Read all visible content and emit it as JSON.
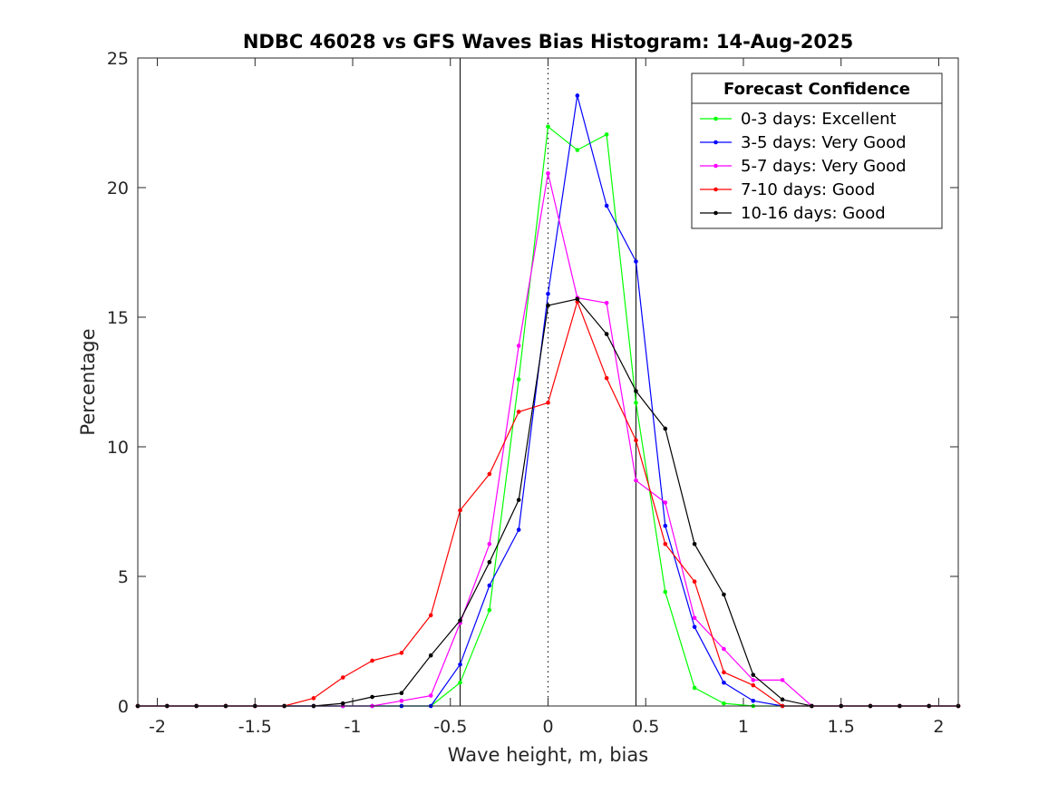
{
  "chart_data": {
    "type": "line",
    "title": "NDBC 46028 vs GFS Waves Bias Histogram: 14-Aug-2025",
    "xlabel": "Wave height, m, bias",
    "ylabel": "Percentage",
    "xlim": [
      -2.1,
      2.1
    ],
    "ylim": [
      0,
      25
    ],
    "xticks": [
      -2,
      -1.5,
      -1,
      -0.5,
      0,
      0.5,
      1,
      1.5,
      2
    ],
    "xtick_labels": [
      "-2",
      "-1.5",
      "-1",
      "-0.5",
      "0",
      "0.5",
      "1",
      "1.5",
      "2"
    ],
    "yticks": [
      0,
      5,
      10,
      15,
      20,
      25
    ],
    "ytick_labels": [
      "0",
      "5",
      "10",
      "15",
      "20",
      "25"
    ],
    "grid": false,
    "vertical_lines": [
      {
        "x": -0.45,
        "style": "solid",
        "color": "#000000"
      },
      {
        "x": 0,
        "style": "dotted",
        "color": "#000000"
      },
      {
        "x": 0.45,
        "style": "solid",
        "color": "#000000"
      }
    ],
    "legend": {
      "title": "Forecast Confidence",
      "placement": "top-right"
    },
    "x": [
      -2.1,
      -1.95,
      -1.8,
      -1.65,
      -1.5,
      -1.35,
      -1.2,
      -1.05,
      -0.9,
      -0.75,
      -0.6,
      -0.45,
      -0.3,
      -0.15,
      0,
      0.15,
      0.3,
      0.45,
      0.6,
      0.75,
      0.9,
      1.05,
      1.2,
      1.35,
      1.5,
      1.65,
      1.8,
      1.95,
      2.1
    ],
    "series": [
      {
        "name": "0-3 days: Excellent",
        "color": "#00ff00",
        "values": [
          0,
          0,
          0,
          0,
          0,
          0,
          0,
          0,
          0,
          0,
          0,
          0.9,
          3.7,
          12.6,
          22.35,
          21.45,
          22.05,
          11.7,
          4.4,
          0.7,
          0.1,
          0,
          0,
          0,
          0,
          0,
          0,
          0,
          0
        ]
      },
      {
        "name": "3-5 days: Very Good",
        "color": "#0000ff",
        "values": [
          0,
          0,
          0,
          0,
          0,
          0,
          0,
          0,
          0,
          0,
          0,
          1.6,
          4.65,
          6.8,
          15.9,
          23.55,
          19.3,
          17.15,
          6.95,
          3.05,
          0.9,
          0.2,
          0,
          0,
          0,
          0,
          0,
          0,
          0
        ]
      },
      {
        "name": "5-7 days: Very Good",
        "color": "#ff00ff",
        "values": [
          0,
          0,
          0,
          0,
          0,
          0,
          0,
          0,
          0,
          0.2,
          0.4,
          3.2,
          6.25,
          13.9,
          20.55,
          15.75,
          15.55,
          8.7,
          7.85,
          3.4,
          2.2,
          1.0,
          1.0,
          0,
          0,
          0,
          0,
          0,
          0
        ]
      },
      {
        "name": "7-10 days: Good",
        "color": "#ff0000",
        "values": [
          0,
          0,
          0,
          0,
          0,
          0,
          0.3,
          1.1,
          1.75,
          2.05,
          3.5,
          7.55,
          8.95,
          11.35,
          11.7,
          15.6,
          12.65,
          10.25,
          6.25,
          4.8,
          1.3,
          0.8,
          0,
          0,
          0,
          0,
          0,
          0,
          0
        ]
      },
      {
        "name": "10-16 days: Good",
        "color": "#000000",
        "values": [
          0,
          0,
          0,
          0,
          0,
          0,
          0,
          0.1,
          0.35,
          0.5,
          1.95,
          3.3,
          5.55,
          7.95,
          15.45,
          15.7,
          14.35,
          12.15,
          10.7,
          6.25,
          4.3,
          1.2,
          0.25,
          0,
          0,
          0,
          0,
          0,
          0
        ]
      }
    ]
  }
}
